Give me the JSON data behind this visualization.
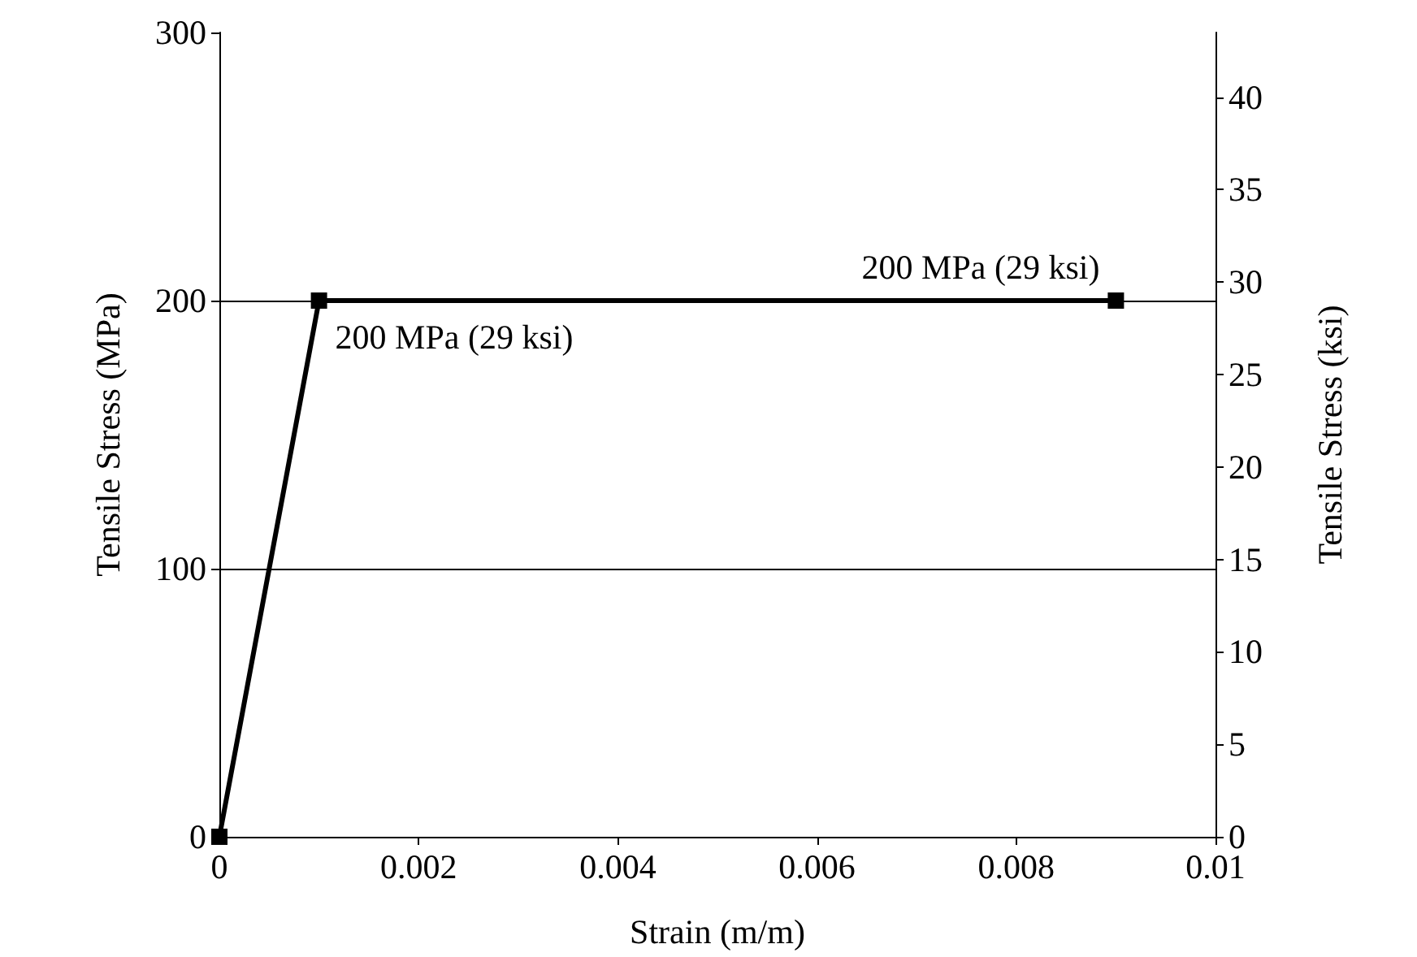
{
  "chart_data": {
    "type": "line",
    "xlabel": "Strain (m/m)",
    "ylabel": "Tensile Stress (MPa)",
    "y2label": "Tensile Stress (ksi)",
    "x": [
      0,
      0.001,
      0.009
    ],
    "series": [
      {
        "color": "#000000",
        "values": [
          0,
          200,
          200
        ]
      }
    ],
    "xlim": [
      0,
      0.01
    ],
    "xticks": [
      0,
      0.002,
      0.004,
      0.006,
      0.008,
      0.01
    ],
    "ylim": [
      0,
      300
    ],
    "yticks": [
      0,
      100,
      200,
      300
    ],
    "y2lim": [
      0,
      43.5
    ],
    "y2ticks": [
      0,
      5,
      10,
      15,
      20,
      25,
      30,
      35,
      40
    ],
    "annotations": [
      {
        "text": "200 MPa (29 ksi)",
        "x": 0.001,
        "y": 200
      },
      {
        "text": "200 MPa (29 ksi)",
        "x": 0.009,
        "y": 200
      }
    ],
    "grid": "y",
    "marker": "square",
    "line_style": "solid"
  }
}
